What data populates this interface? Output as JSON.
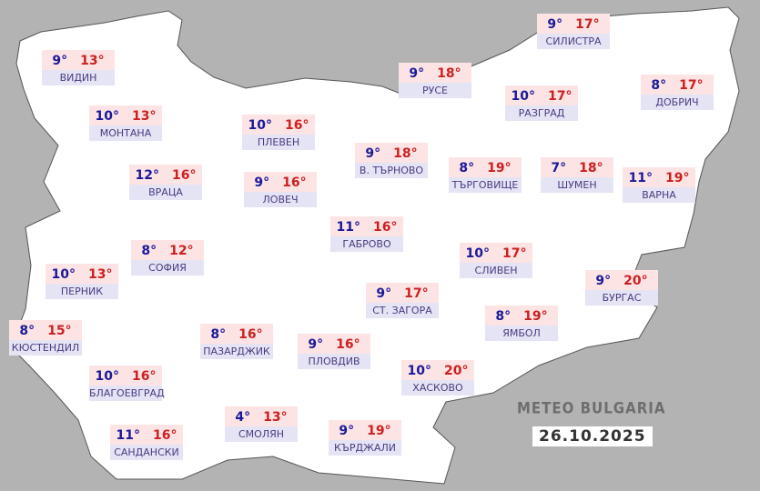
{
  "map": {
    "title": "METEO BULGARIA",
    "date": "26.10.2025",
    "colors": {
      "min": "#1a1a99",
      "max": "#cc2020",
      "land": "#ffffff",
      "background": "#b3b3b3"
    }
  },
  "cities": [
    {
      "name": "ВИДИН",
      "min": "9°",
      "max": "13°"
    },
    {
      "name": "МОНТАНА",
      "min": "10°",
      "max": "13°"
    },
    {
      "name": "ПЛЕВЕН",
      "min": "10°",
      "max": "16°"
    },
    {
      "name": "РУСЕ",
      "min": "9°",
      "max": "18°"
    },
    {
      "name": "СИЛИСТРА",
      "min": "9°",
      "max": "17°"
    },
    {
      "name": "РАЗГРАД",
      "min": "10°",
      "max": "17°"
    },
    {
      "name": "ДОБРИЧ",
      "min": "8°",
      "max": "17°"
    },
    {
      "name": "В. ТЪРНОВО",
      "min": "9°",
      "max": "18°"
    },
    {
      "name": "ТЪРГОВИЩЕ",
      "min": "8°",
      "max": "19°"
    },
    {
      "name": "ШУМЕН",
      "min": "7°",
      "max": "18°"
    },
    {
      "name": "ВАРНА",
      "min": "11°",
      "max": "19°"
    },
    {
      "name": "ВРАЦА",
      "min": "12°",
      "max": "16°"
    },
    {
      "name": "ЛОВЕЧ",
      "min": "9°",
      "max": "16°"
    },
    {
      "name": "ГАБРОВО",
      "min": "11°",
      "max": "16°"
    },
    {
      "name": "СОФИЯ",
      "min": "8°",
      "max": "12°"
    },
    {
      "name": "СЛИВЕН",
      "min": "10°",
      "max": "17°"
    },
    {
      "name": "БУРГАС",
      "min": "9°",
      "max": "20°"
    },
    {
      "name": "ПЕРНИК",
      "min": "10°",
      "max": "13°"
    },
    {
      "name": "СТ. ЗАГОРА",
      "min": "9°",
      "max": "17°"
    },
    {
      "name": "ЯМБОЛ",
      "min": "8°",
      "max": "19°"
    },
    {
      "name": "КЮСТЕНДИЛ",
      "min": "8°",
      "max": "15°"
    },
    {
      "name": "ПАЗАРДЖИК",
      "min": "8°",
      "max": "16°"
    },
    {
      "name": "ПЛОВДИВ",
      "min": "9°",
      "max": "16°"
    },
    {
      "name": "БЛАГОЕВГРАД",
      "min": "10°",
      "max": "16°"
    },
    {
      "name": "ХАСКОВО",
      "min": "10°",
      "max": "20°"
    },
    {
      "name": "СМОЛЯН",
      "min": "4°",
      "max": "13°"
    },
    {
      "name": "САНДАНСКИ",
      "min": "11°",
      "max": "16°"
    },
    {
      "name": "КЪРДЖАЛИ",
      "min": "9°",
      "max": "19°"
    }
  ]
}
